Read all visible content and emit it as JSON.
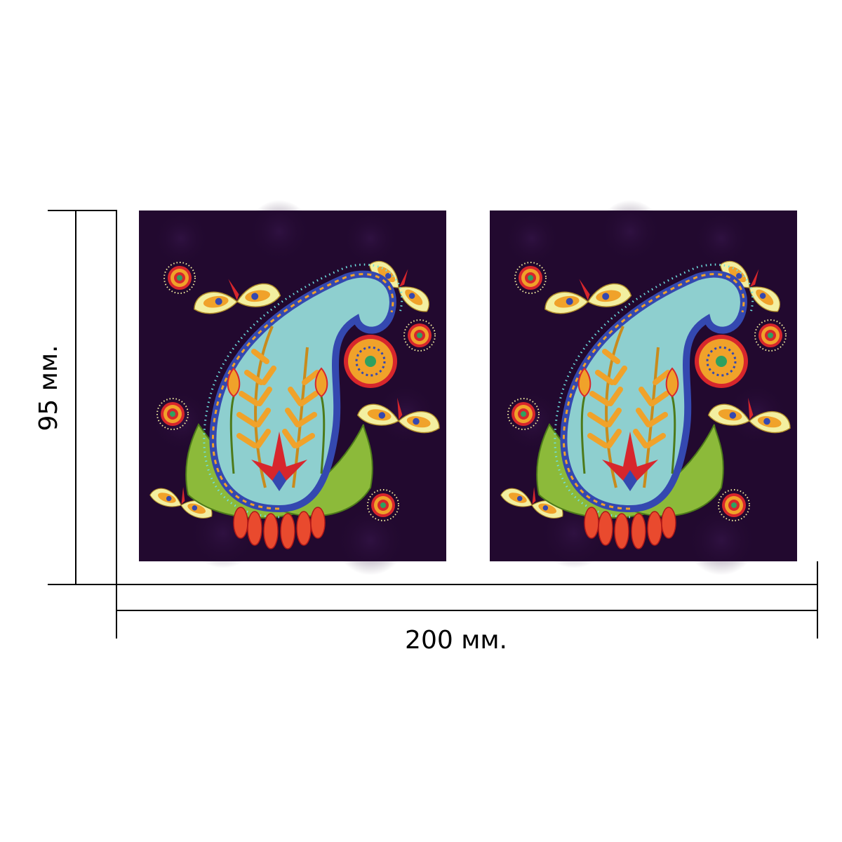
{
  "dimensions": {
    "width_label": "200 мм.",
    "height_label": "95 мм."
  },
  "panels": [
    {
      "name": "left-panel"
    },
    {
      "name": "right-panel"
    }
  ],
  "colors": {
    "background": "#22092f",
    "paisley_fill": "#8ecfcf",
    "accent_orange": "#f0a22a",
    "accent_red": "#d7262c",
    "leaf_green": "#8cba3a",
    "pale_yellow": "#f3efa0",
    "blue_border": "#3448b0"
  },
  "icons": {
    "motif": "paisley-motif-icon",
    "butterfly": "butterfly-icon",
    "rosette": "rosette-icon"
  }
}
